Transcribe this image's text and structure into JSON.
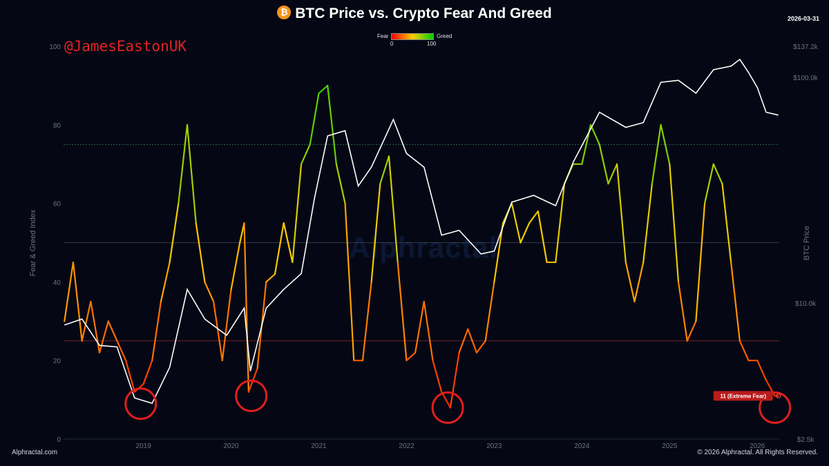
{
  "header": {
    "title": "BTC Price vs. Crypto Fear And Greed",
    "logo_glyph": "₿",
    "date": "2026-03-31"
  },
  "watermark": {
    "handle": "@JamesEastonUK",
    "background_mark": "Alphractal"
  },
  "legend": {
    "fear_label": "Fear",
    "greed_label": "Greed",
    "min_label": "0",
    "max_label": "100",
    "gradient_colors": [
      "#ff0000",
      "#ffcc00",
      "#00d000"
    ]
  },
  "footer": {
    "source": "Alphractal.com",
    "copyright": "© 2026 Alphractal. All Rights Reserved."
  },
  "chart_data": {
    "type": "line",
    "title": "BTC Price vs. Crypto Fear And Greed",
    "x_ticks": [
      "2019",
      "2020",
      "2021",
      "2022",
      "2023",
      "2024",
      "2025",
      "2026"
    ],
    "x_range": [
      2018.09,
      2026.25
    ],
    "y_left": {
      "label": "Fear & Greed Index",
      "ticks": [
        "0",
        "20",
        "40",
        "60",
        "80",
        "100"
      ],
      "range": [
        0,
        100
      ]
    },
    "y_right": {
      "label": "BTC Price",
      "scale": "log",
      "ticks": [
        "$2.5k",
        "$10.0k",
        "$100.0k",
        "$137.2k"
      ],
      "tick_values": [
        2500,
        10000,
        100000,
        137200
      ],
      "range": [
        2500,
        137200
      ]
    },
    "reference_lines": [
      {
        "value": 75,
        "color": "#4ade80"
      },
      {
        "value": 50,
        "color": "#6b7280"
      },
      {
        "value": 25,
        "color": "#ef4444"
      }
    ],
    "series": [
      {
        "name": "Fear & Greed",
        "color_scale": [
          "#ff0000",
          "#ffcc00",
          "#00d000"
        ],
        "points": [
          [
            2018.1,
            30
          ],
          [
            2018.2,
            45
          ],
          [
            2018.3,
            25
          ],
          [
            2018.4,
            35
          ],
          [
            2018.5,
            22
          ],
          [
            2018.6,
            30
          ],
          [
            2018.7,
            25
          ],
          [
            2018.8,
            20
          ],
          [
            2018.9,
            12
          ],
          [
            2019.0,
            14
          ],
          [
            2019.1,
            20
          ],
          [
            2019.2,
            35
          ],
          [
            2019.3,
            45
          ],
          [
            2019.4,
            60
          ],
          [
            2019.5,
            80
          ],
          [
            2019.6,
            55
          ],
          [
            2019.7,
            40
          ],
          [
            2019.8,
            35
          ],
          [
            2019.9,
            20
          ],
          [
            2020.0,
            38
          ],
          [
            2020.1,
            50
          ],
          [
            2020.15,
            55
          ],
          [
            2020.2,
            12
          ],
          [
            2020.3,
            18
          ],
          [
            2020.4,
            40
          ],
          [
            2020.5,
            42
          ],
          [
            2020.6,
            55
          ],
          [
            2020.7,
            45
          ],
          [
            2020.8,
            70
          ],
          [
            2020.9,
            75
          ],
          [
            2021.0,
            88
          ],
          [
            2021.1,
            90
          ],
          [
            2021.2,
            70
          ],
          [
            2021.3,
            60
          ],
          [
            2021.4,
            20
          ],
          [
            2021.5,
            20
          ],
          [
            2021.6,
            40
          ],
          [
            2021.7,
            65
          ],
          [
            2021.8,
            72
          ],
          [
            2021.9,
            45
          ],
          [
            2022.0,
            20
          ],
          [
            2022.1,
            22
          ],
          [
            2022.2,
            35
          ],
          [
            2022.3,
            20
          ],
          [
            2022.4,
            12
          ],
          [
            2022.5,
            8
          ],
          [
            2022.6,
            22
          ],
          [
            2022.7,
            28
          ],
          [
            2022.8,
            22
          ],
          [
            2022.9,
            25
          ],
          [
            2023.0,
            40
          ],
          [
            2023.1,
            55
          ],
          [
            2023.2,
            60
          ],
          [
            2023.3,
            50
          ],
          [
            2023.4,
            55
          ],
          [
            2023.5,
            58
          ],
          [
            2023.6,
            45
          ],
          [
            2023.7,
            45
          ],
          [
            2023.8,
            65
          ],
          [
            2023.9,
            70
          ],
          [
            2024.0,
            70
          ],
          [
            2024.1,
            80
          ],
          [
            2024.2,
            75
          ],
          [
            2024.3,
            65
          ],
          [
            2024.4,
            70
          ],
          [
            2024.5,
            45
          ],
          [
            2024.6,
            35
          ],
          [
            2024.7,
            45
          ],
          [
            2024.8,
            65
          ],
          [
            2024.9,
            80
          ],
          [
            2025.0,
            70
          ],
          [
            2025.1,
            40
          ],
          [
            2025.2,
            25
          ],
          [
            2025.3,
            30
          ],
          [
            2025.4,
            60
          ],
          [
            2025.5,
            70
          ],
          [
            2025.6,
            65
          ],
          [
            2025.7,
            45
          ],
          [
            2025.8,
            25
          ],
          [
            2025.9,
            20
          ],
          [
            2026.0,
            20
          ],
          [
            2026.1,
            15
          ],
          [
            2026.2,
            11
          ],
          [
            2026.24,
            11
          ]
        ]
      },
      {
        "name": "BTC Price",
        "color": "#ffffff",
        "points": [
          [
            2018.1,
            8000
          ],
          [
            2018.3,
            8500
          ],
          [
            2018.5,
            6500
          ],
          [
            2018.7,
            6400
          ],
          [
            2018.9,
            3800
          ],
          [
            2019.1,
            3600
          ],
          [
            2019.3,
            5200
          ],
          [
            2019.5,
            11500
          ],
          [
            2019.7,
            8500
          ],
          [
            2019.95,
            7200
          ],
          [
            2020.15,
            9500
          ],
          [
            2020.22,
            5000
          ],
          [
            2020.4,
            9500
          ],
          [
            2020.6,
            11500
          ],
          [
            2020.8,
            13500
          ],
          [
            2020.95,
            29000
          ],
          [
            2021.1,
            55000
          ],
          [
            2021.3,
            58000
          ],
          [
            2021.45,
            33000
          ],
          [
            2021.6,
            40000
          ],
          [
            2021.85,
            65000
          ],
          [
            2022.0,
            46000
          ],
          [
            2022.2,
            40000
          ],
          [
            2022.4,
            20000
          ],
          [
            2022.6,
            21000
          ],
          [
            2022.85,
            16500
          ],
          [
            2023.0,
            17000
          ],
          [
            2023.2,
            28000
          ],
          [
            2023.45,
            30000
          ],
          [
            2023.7,
            27000
          ],
          [
            2023.9,
            42000
          ],
          [
            2024.2,
            70000
          ],
          [
            2024.5,
            60000
          ],
          [
            2024.7,
            63000
          ],
          [
            2024.9,
            95000
          ],
          [
            2025.1,
            97000
          ],
          [
            2025.3,
            85000
          ],
          [
            2025.5,
            108000
          ],
          [
            2025.7,
            112000
          ],
          [
            2025.8,
            120000
          ],
          [
            2025.9,
            105000
          ],
          [
            2026.0,
            90000
          ],
          [
            2026.1,
            70000
          ],
          [
            2026.24,
            68000
          ]
        ]
      }
    ],
    "annotations": [
      {
        "text": "11 (Extreme Fear)",
        "x": 2026.24,
        "y": 11
      }
    ],
    "highlight_circles": [
      {
        "x": 2018.97,
        "y": 9
      },
      {
        "x": 2020.23,
        "y": 11
      },
      {
        "x": 2022.47,
        "y": 8
      },
      {
        "x": 2026.2,
        "y": 8
      }
    ]
  }
}
